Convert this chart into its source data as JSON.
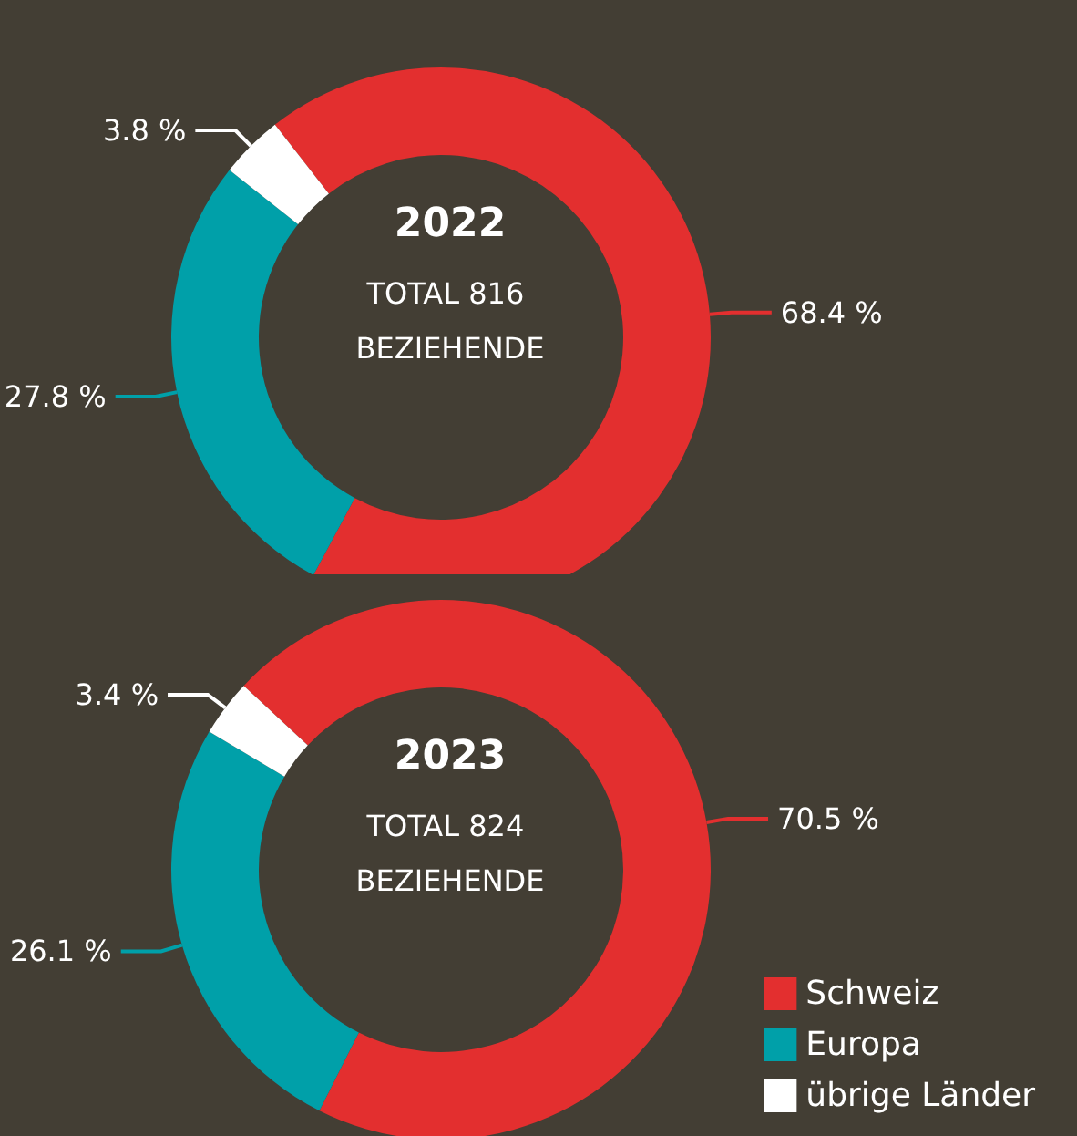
{
  "chart_data": [
    {
      "type": "donut",
      "title": "2022",
      "subtitle": "TOTAL 816 BEZIEHENDE",
      "categories": [
        null,
        null,
        null
      ],
      "values": [
        68.4,
        27.8,
        3.8
      ],
      "value_labels": [
        "68.4 %",
        "27.8 %",
        "3.8 %"
      ],
      "colors": [
        "#e32f2f",
        "#00a0a9",
        "#ffffff"
      ],
      "legend": false
    },
    {
      "type": "donut",
      "title": "2023",
      "subtitle": "TOTAL 824 BEZIEHENDE",
      "categories": [
        "Schweiz",
        "Europa",
        "übrige Länder"
      ],
      "values": [
        70.5,
        26.1,
        3.4
      ],
      "value_labels": [
        "70.5 %",
        "26.1 %",
        "3.4 %"
      ],
      "colors": [
        "#e32f2f",
        "#00a0a9",
        "#ffffff"
      ],
      "legend": "bottom right"
    }
  ]
}
